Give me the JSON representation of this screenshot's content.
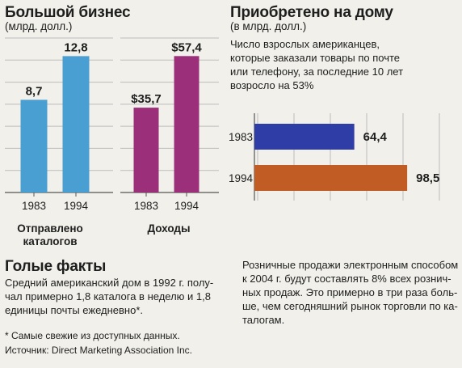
{
  "left": {
    "title": "Большой бизнес",
    "subtitle": "(млрд. долл.)"
  },
  "right": {
    "title": "Приобретено на дому",
    "subtitle": "(в млрд. долл.)",
    "description": [
      "Число взрослых американцев,",
      "которые заказали товары по почте",
      "или телефону, за последние 10 лет",
      "возросло на 53%"
    ]
  },
  "facts": {
    "title": "Голые факты",
    "body": [
      "Средний американский дом в 1992 г. полу-",
      "чал примерно 1,8 каталога в неделю и 1,8",
      "единицы почты ежедневно*."
    ],
    "footnote": "* Самые свежие из доступных данных.",
    "source": "Источник: Direct Marketing Association Inc."
  },
  "retail_note": [
    "Розничные продажи электронным способом",
    "к 2004 г. будут составлять 8% всех рознич-",
    "ных продаж. Это примерно в три раза боль-",
    "ше, чем сегодняшний рынок торговли по ка-",
    "талогам."
  ],
  "colors": {
    "blue_bar": "#4a9fd2",
    "purple_bar": "#9c2f7a",
    "hbar_blue": "#2f3ea6",
    "hbar_orange": "#c25c25",
    "grid": "#bdbdbd"
  },
  "chart_data": [
    {
      "type": "bar",
      "categories": [
        "1983",
        "1994"
      ],
      "values": [
        8.7,
        12.8
      ],
      "data_labels": [
        "8,7",
        "12,8"
      ],
      "xlabel": "Отправлено каталогов",
      "ylim": [
        0,
        14.5
      ],
      "grid": true,
      "color": "#4a9fd2"
    },
    {
      "type": "bar",
      "categories": [
        "1983",
        "1994"
      ],
      "values": [
        35.7,
        57.4
      ],
      "data_labels": [
        "$35,7",
        "$57,4"
      ],
      "xlabel": "Доходы",
      "ylim": [
        0,
        65
      ],
      "grid": true,
      "color": "#9c2f7a"
    },
    {
      "type": "bar",
      "orientation": "horizontal",
      "categories": [
        "1983",
        "1994"
      ],
      "values": [
        64.4,
        98.5
      ],
      "data_labels": [
        "64,4",
        "98,5"
      ],
      "grid": true,
      "colors": [
        "#2f3ea6",
        "#c25c25"
      ]
    }
  ]
}
